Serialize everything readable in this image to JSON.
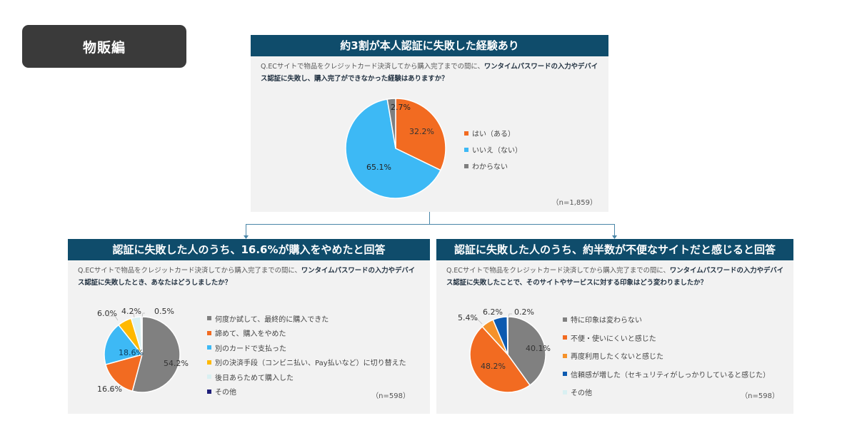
{
  "tag": {
    "label": "物販編"
  },
  "top_panel": {
    "title": "約3割が本人認証に失敗した経験あり",
    "question_plain": "Q.ECサイトで物品をクレジットカード決済してから購入完了までの間に、",
    "question_bold": "ワンタイムパスワードの入力やデバイス認証に失敗し、購入完了ができなかった経験はありますか？",
    "n": "（n=1,859）",
    "legend": [
      {
        "label": "はい（ある）",
        "color": "#f26b21"
      },
      {
        "label": "いいえ（ない）",
        "color": "#3db9f5"
      },
      {
        "label": "わからない",
        "color": "#7f7f7f"
      }
    ]
  },
  "left_panel": {
    "title": "認証に失敗した人のうち、16.6%が購入をやめたと回答",
    "question_plain": "Q.ECサイトで物品をクレジットカード決済してから購入完了までの間に、",
    "question_bold": "ワンタイムパスワードの入力やデバイス認証に失敗したとき、あなたはどうしましたか？",
    "n": "（n=598）",
    "legend": [
      {
        "label": "何度か試して、最終的に購入できた",
        "color": "#808080"
      },
      {
        "label": "諦めて、購入をやめた",
        "color": "#f26b21"
      },
      {
        "label": "別のカードで支払った",
        "color": "#3db9f5"
      },
      {
        "label": "別の決済手段（コンビニ払い、Pay払いなど）に切り替えた",
        "color": "#ffb900"
      },
      {
        "label": "後日あらためて購入した",
        "color": "#d9f0f2"
      },
      {
        "label": "その他",
        "color": "#1f1f7a"
      }
    ]
  },
  "right_panel": {
    "title": "認証に失敗した人のうち、約半数が不便なサイトだと感じると回答",
    "question_plain": "Q.ECサイトで物品をクレジットカード決済してから購入完了までの間に、",
    "question_bold": "ワンタイムパスワードの入力やデバイス認証に失敗したことで、そのサイトやサービスに対する印象はどう変わりましたか？",
    "n": "（n=598）",
    "legend": [
      {
        "label": "特に印象は変わらない",
        "color": "#808080"
      },
      {
        "label": "不便・使いにくいと感じた",
        "color": "#f26b21"
      },
      {
        "label": "再度利用したくないと感じた",
        "color": "#f5922b"
      },
      {
        "label": "信頼感が増した（セキュリティがしっかりしていると感じた）",
        "color": "#0d5ab0"
      },
      {
        "label": "その他",
        "color": "#d9f0f2"
      }
    ]
  },
  "chart_data": [
    {
      "type": "pie",
      "title": "約3割が本人認証に失敗した経験あり",
      "categories": [
        "はい（ある）",
        "いいえ（ない）",
        "わからない"
      ],
      "values": [
        32.2,
        65.1,
        2.7
      ],
      "labels": [
        "32.2%",
        "65.1%",
        "2.7%"
      ],
      "n": 1859,
      "legend_position": "right"
    },
    {
      "type": "pie",
      "title": "認証に失敗した人のうち、16.6%が購入をやめたと回答",
      "categories": [
        "何度か試して、最終的に購入できた",
        "諦めて、購入をやめた",
        "別のカードで支払った",
        "別の決済手段（コンビニ払い、Pay払いなど）に切り替えた",
        "後日あらためて購入した",
        "その他"
      ],
      "values": [
        54.2,
        16.6,
        18.6,
        6.0,
        4.2,
        0.5
      ],
      "labels": [
        "54.2%",
        "16.6%",
        "18.6%",
        "6.0%",
        "4.2%",
        "0.5%"
      ],
      "n": 598,
      "legend_position": "right"
    },
    {
      "type": "pie",
      "title": "認証に失敗した人のうち、約半数が不便なサイトだと感じると回答",
      "categories": [
        "特に印象は変わらない",
        "不便・使いにくいと感じた",
        "再度利用したくないと感じた",
        "信頼感が増した（セキュリティがしっかりしていると感じた）",
        "その他"
      ],
      "values": [
        40.1,
        48.2,
        5.4,
        6.2,
        0.2
      ],
      "labels": [
        "40.1%",
        "48.2%",
        "5.4%",
        "6.2%",
        "0.2%"
      ],
      "n": 598,
      "legend_position": "right"
    }
  ]
}
